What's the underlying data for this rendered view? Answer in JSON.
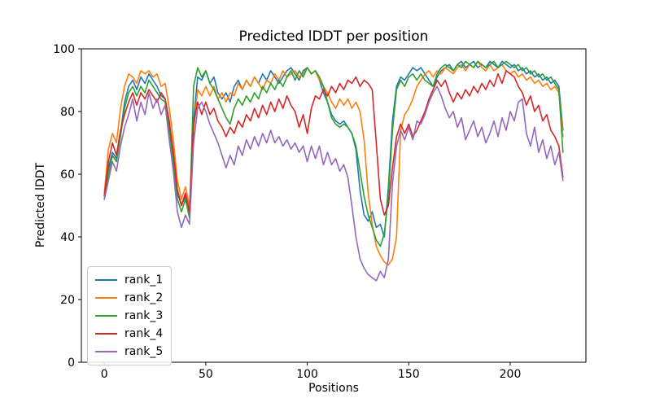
{
  "chart_data": {
    "type": "line",
    "title": "Predicted lDDT per position",
    "xlabel": "Positions",
    "ylabel": "Predicted lDDT",
    "xlim": [
      -11.3,
      237.3
    ],
    "ylim": [
      0,
      100
    ],
    "xticks": [
      0,
      50,
      100,
      150,
      200
    ],
    "yticks": [
      0,
      20,
      40,
      60,
      80,
      100
    ],
    "grid": false,
    "legend_position": "lower left",
    "x_start": 0,
    "x_step": 2,
    "series": [
      {
        "name": "rank_1",
        "color": "#1f77b4",
        "values": [
          53,
          62,
          67,
          65,
          73,
          83,
          88,
          90,
          87,
          91,
          89,
          92,
          90,
          88,
          85,
          84,
          76,
          67,
          54,
          50,
          53,
          47,
          77,
          91,
          90,
          93,
          89,
          91,
          86,
          84,
          86,
          83,
          88,
          90,
          87,
          90,
          88,
          91,
          89,
          92,
          90,
          93,
          91,
          89,
          91,
          93,
          94,
          92,
          90,
          93,
          94,
          92,
          93,
          90,
          86,
          83,
          79,
          77,
          76,
          77,
          75,
          73,
          68,
          55,
          47,
          45,
          48,
          43,
          44,
          40,
          56,
          77,
          88,
          91,
          90,
          92,
          94,
          93,
          94,
          92,
          90,
          88,
          91,
          93,
          94,
          95,
          93,
          95,
          96,
          94,
          95,
          96,
          94,
          95,
          94,
          96,
          95,
          94,
          96,
          95,
          94,
          95,
          93,
          94,
          92,
          93,
          91,
          92,
          90,
          91,
          89,
          90,
          88,
          74
        ]
      },
      {
        "name": "rank_2",
        "color": "#ff7f0e",
        "values": [
          54,
          68,
          73,
          70,
          81,
          88,
          92,
          91,
          89,
          93,
          92,
          93,
          91,
          92,
          88,
          89,
          81,
          71,
          58,
          52,
          56,
          50,
          74,
          87,
          85,
          88,
          85,
          88,
          84,
          86,
          83,
          86,
          85,
          89,
          87,
          90,
          88,
          91,
          89,
          87,
          90,
          89,
          92,
          90,
          93,
          91,
          92,
          93,
          91,
          92,
          94,
          92,
          93,
          90,
          88,
          86,
          83,
          81,
          84,
          82,
          84,
          81,
          83,
          80,
          71,
          54,
          44,
          37,
          34,
          32,
          31,
          33,
          40,
          74,
          79,
          81,
          84,
          88,
          90,
          92,
          93,
          91,
          93,
          92,
          94,
          93,
          92,
          94,
          95,
          93,
          95,
          94,
          96,
          94,
          93,
          95,
          93,
          94,
          95,
          93,
          92,
          93,
          91,
          92,
          90,
          91,
          89,
          90,
          88,
          89,
          87,
          88,
          86,
          72
        ]
      },
      {
        "name": "rank_3",
        "color": "#2ca02c",
        "values": [
          52,
          60,
          66,
          64,
          72,
          81,
          86,
          88,
          85,
          88,
          86,
          90,
          88,
          86,
          84,
          83,
          74,
          64,
          52,
          48,
          52,
          46,
          88,
          94,
          91,
          93,
          89,
          87,
          84,
          81,
          78,
          76,
          81,
          84,
          82,
          85,
          83,
          86,
          84,
          88,
          86,
          89,
          87,
          90,
          88,
          91,
          93,
          90,
          93,
          91,
          94,
          92,
          93,
          91,
          88,
          83,
          78,
          76,
          75,
          76,
          75,
          73,
          69,
          61,
          53,
          47,
          43,
          39,
          37,
          41,
          53,
          74,
          87,
          90,
          88,
          91,
          92,
          90,
          92,
          90,
          89,
          88,
          92,
          94,
          95,
          94,
          93,
          95,
          94,
          96,
          95,
          94,
          96,
          95,
          94,
          95,
          96,
          94,
          95,
          96,
          95,
          94,
          95,
          93,
          94,
          92,
          93,
          91,
          92,
          90,
          91,
          89,
          87,
          67
        ]
      },
      {
        "name": "rank_4",
        "color": "#d62728",
        "values": [
          53,
          64,
          70,
          66,
          74,
          79,
          83,
          86,
          82,
          86,
          84,
          87,
          85,
          83,
          86,
          84,
          77,
          67,
          55,
          50,
          54,
          48,
          76,
          83,
          79,
          83,
          79,
          81,
          77,
          75,
          72,
          75,
          73,
          77,
          75,
          79,
          77,
          81,
          78,
          82,
          79,
          83,
          80,
          84,
          81,
          85,
          82,
          80,
          75,
          79,
          73,
          81,
          85,
          84,
          87,
          85,
          88,
          86,
          89,
          87,
          90,
          89,
          91,
          88,
          90,
          89,
          87,
          70,
          52,
          47,
          50,
          62,
          72,
          76,
          73,
          76,
          72,
          74,
          77,
          80,
          84,
          87,
          90,
          88,
          90,
          86,
          83,
          86,
          84,
          87,
          85,
          88,
          86,
          89,
          87,
          90,
          88,
          92,
          89,
          93,
          92,
          91,
          88,
          86,
          82,
          85,
          80,
          82,
          77,
          79,
          74,
          72,
          69,
          59
        ]
      },
      {
        "name": "rank_5",
        "color": "#9467bd",
        "values": [
          52,
          58,
          64,
          61,
          69,
          75,
          79,
          84,
          77,
          83,
          79,
          86,
          81,
          84,
          79,
          82,
          71,
          61,
          48,
          43,
          47,
          44,
          70,
          81,
          83,
          80,
          76,
          73,
          70,
          66,
          62,
          66,
          63,
          69,
          66,
          71,
          68,
          72,
          69,
          73,
          70,
          74,
          70,
          72,
          69,
          71,
          68,
          70,
          67,
          69,
          64,
          69,
          65,
          69,
          63,
          67,
          63,
          65,
          61,
          63,
          59,
          50,
          40,
          33,
          30,
          28,
          27,
          26,
          29,
          27,
          33,
          57,
          69,
          74,
          71,
          75,
          71,
          77,
          76,
          79,
          83,
          86,
          88,
          85,
          81,
          78,
          80,
          75,
          78,
          71,
          74,
          77,
          72,
          75,
          70,
          73,
          77,
          72,
          78,
          74,
          80,
          77,
          83,
          84,
          73,
          69,
          75,
          67,
          71,
          65,
          69,
          63,
          67,
          58
        ]
      }
    ]
  }
}
